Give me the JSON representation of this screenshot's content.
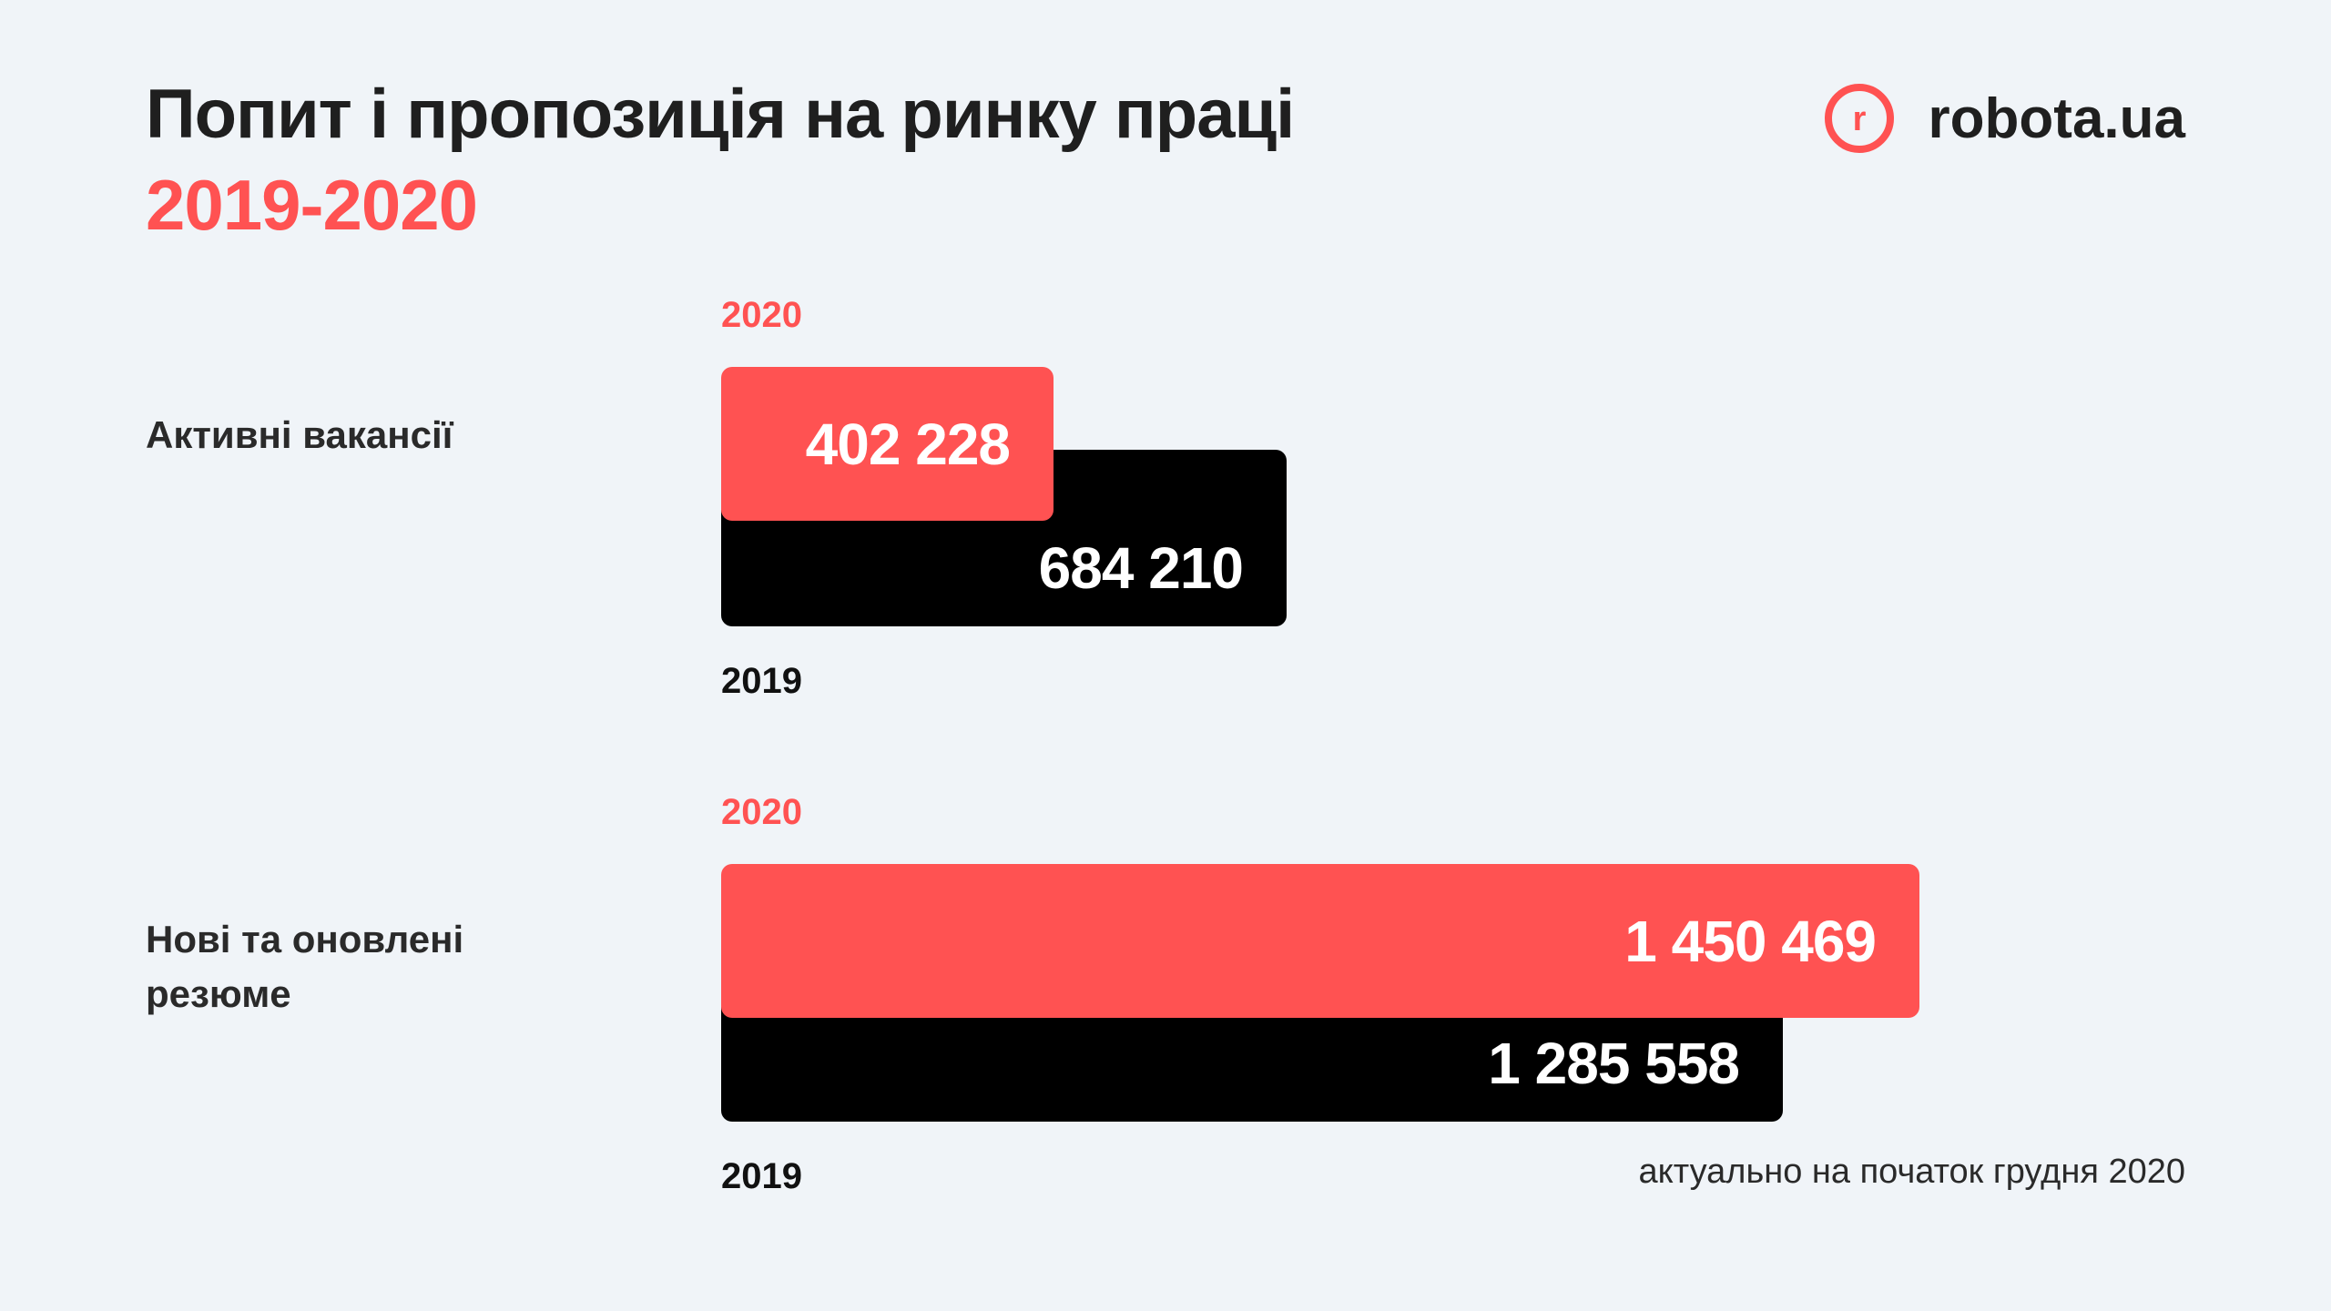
{
  "title": "Попит і пропозиція на ринку праці",
  "subtitle": "2019-2020",
  "logo": {
    "text": "robota.ua",
    "icon": "robota-logo-icon",
    "letter": "r"
  },
  "colors": {
    "accent": "#ff5252",
    "dark": "#000000",
    "background": "#f0f4f8"
  },
  "chart_data": {
    "type": "bar",
    "orientation": "horizontal",
    "categories": [
      "Активні вакансії",
      "Нові та оновлені резюме"
    ],
    "series": [
      {
        "name": "2020",
        "values": [
          402228,
          1450469
        ],
        "labels": [
          "402 228",
          "1 450 469"
        ],
        "color": "#ff5252"
      },
      {
        "name": "2019",
        "values": [
          684210,
          1285558
        ],
        "labels": [
          "684 210",
          "1 285 558"
        ],
        "color": "#000000"
      }
    ]
  },
  "rows": [
    {
      "label": "Активні вакансії",
      "year_top": "2020",
      "year_bottom": "2019"
    },
    {
      "label": "Нові та оновлені резюме",
      "year_top": "2020",
      "year_bottom": "2019"
    }
  ],
  "note": "актуально на початок грудня 2020"
}
